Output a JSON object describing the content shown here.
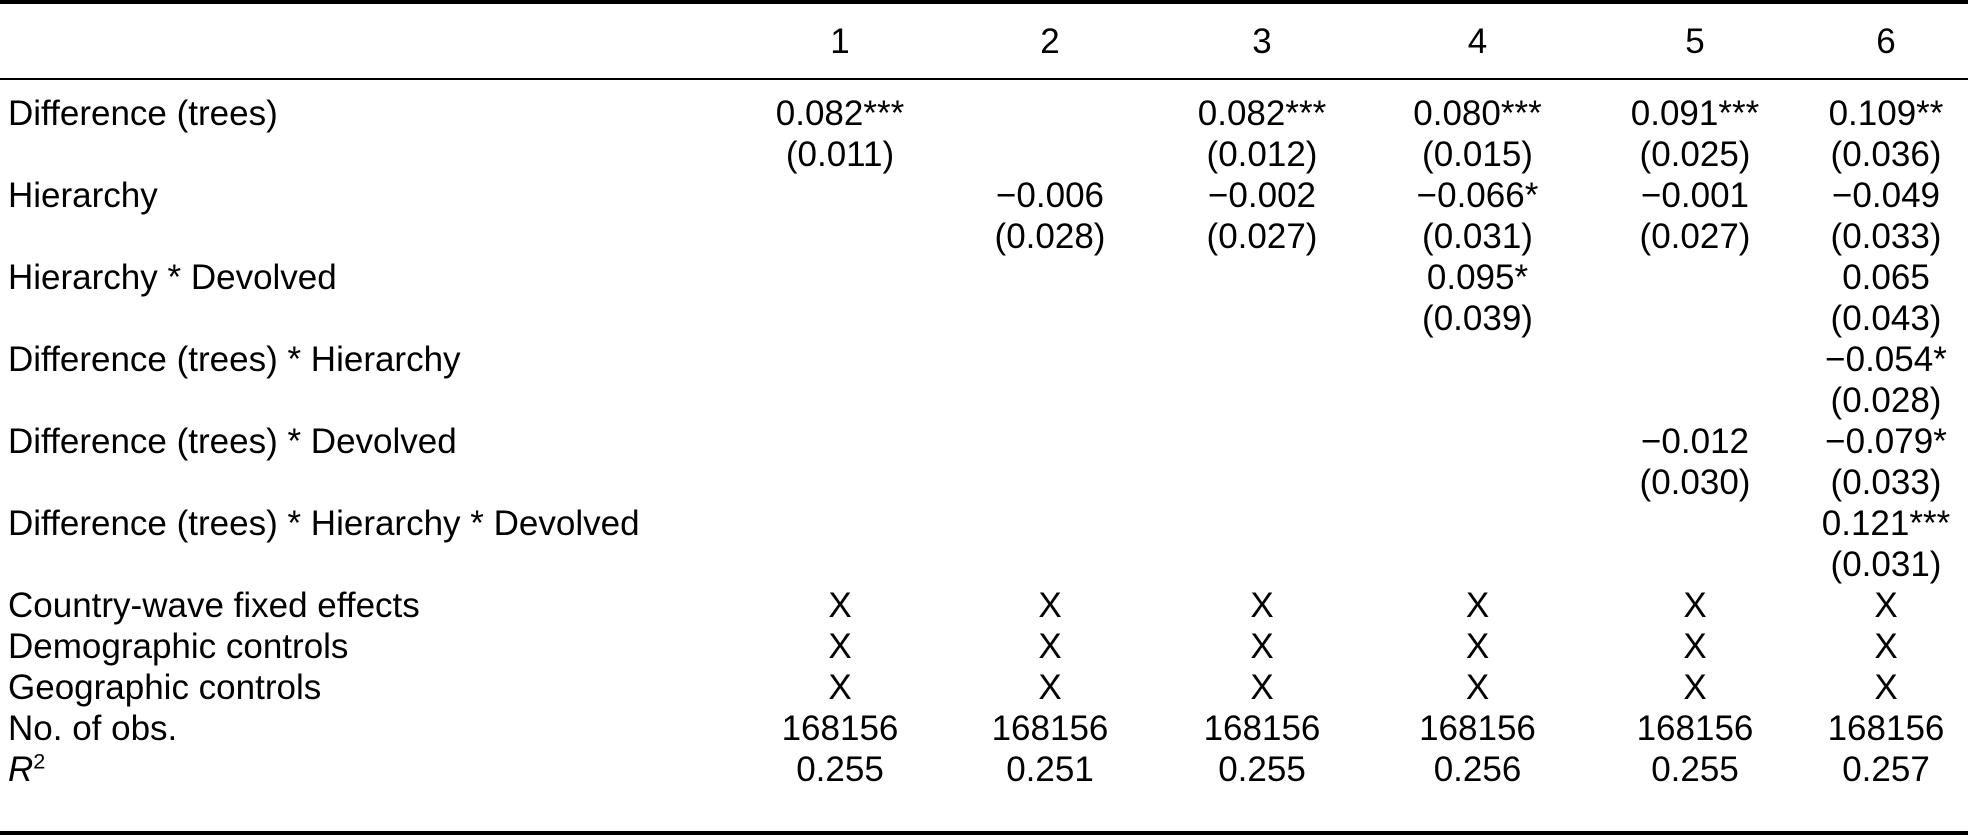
{
  "figure": {
    "kind": "regression-results-table",
    "text_color": "#000000",
    "background_color": "#ffffff",
    "rule_color": "#000000"
  },
  "table": {
    "columns": [
      "1",
      "2",
      "3",
      "4",
      "5",
      "6"
    ],
    "coef_rows": [
      {
        "label": "Difference (trees)",
        "cells": [
          {
            "est": "0.082***",
            "se": "(0.011)"
          },
          null,
          {
            "est": "0.082***",
            "se": "(0.012)"
          },
          {
            "est": "0.080***",
            "se": "(0.015)"
          },
          {
            "est": "0.091***",
            "se": "(0.025)"
          },
          {
            "est": "0.109**",
            "se": "(0.036)"
          }
        ]
      },
      {
        "label": "Hierarchy",
        "cells": [
          null,
          {
            "est": "−0.006",
            "se": "(0.028)"
          },
          {
            "est": "−0.002",
            "se": "(0.027)"
          },
          {
            "est": "−0.066*",
            "se": "(0.031)"
          },
          {
            "est": "−0.001",
            "se": "(0.027)"
          },
          {
            "est": "−0.049",
            "se": "(0.033)"
          }
        ]
      },
      {
        "label": "Hierarchy * Devolved",
        "cells": [
          null,
          null,
          null,
          {
            "est": "0.095*",
            "se": "(0.039)"
          },
          null,
          {
            "est": "0.065",
            "se": "(0.043)"
          }
        ]
      },
      {
        "label": "Difference (trees) * Hierarchy",
        "cells": [
          null,
          null,
          null,
          null,
          null,
          {
            "est": "−0.054*",
            "se": "(0.028)"
          }
        ]
      },
      {
        "label": "Difference (trees) * Devolved",
        "cells": [
          null,
          null,
          null,
          null,
          {
            "est": "−0.012",
            "se": "(0.030)"
          },
          {
            "est": "−0.079*",
            "se": "(0.033)"
          }
        ]
      },
      {
        "label": "Difference (trees) * Hierarchy * Devolved",
        "cells": [
          null,
          null,
          null,
          null,
          null,
          {
            "est": "0.121***",
            "se": "(0.031)"
          }
        ]
      }
    ],
    "bottom_rows": [
      {
        "label": "Country-wave fixed effects",
        "values": [
          "X",
          "X",
          "X",
          "X",
          "X",
          "X"
        ]
      },
      {
        "label": "Demographic controls",
        "values": [
          "X",
          "X",
          "X",
          "X",
          "X",
          "X"
        ]
      },
      {
        "label": "Geographic controls",
        "values": [
          "X",
          "X",
          "X",
          "X",
          "X",
          "X"
        ]
      },
      {
        "label": "No. of obs.",
        "values": [
          "168156",
          "168156",
          "168156",
          "168156",
          "168156",
          "168156"
        ]
      },
      {
        "label": "R",
        "label_sup": "2",
        "label_italic": true,
        "values": [
          "0.255",
          "0.251",
          "0.255",
          "0.256",
          "0.255",
          "0.257"
        ]
      }
    ]
  }
}
